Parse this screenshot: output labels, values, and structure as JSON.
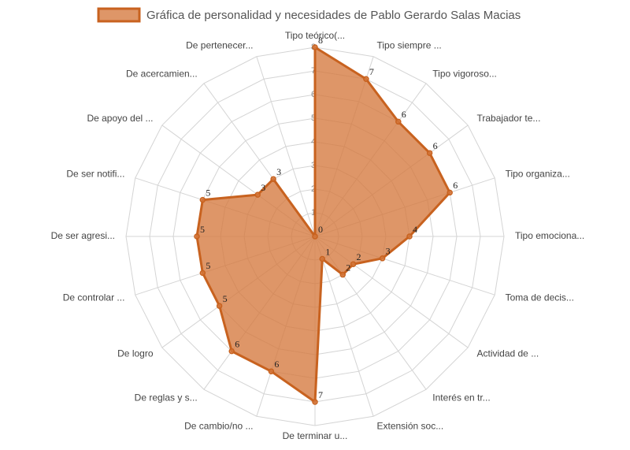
{
  "chart_data": {
    "type": "radar",
    "categories": [
      "Tipo teórico(...",
      "Tipo siempre ...",
      "Tipo vigoroso...",
      "Trabajador te...",
      "Tipo organiza...",
      "Tipo emociona...",
      "Toma de decis...",
      "Actividad de ...",
      "Interés en tr...",
      "Extensión soc...",
      "De terminar u...",
      "De cambio/no ...",
      "De reglas y s...",
      "De logro",
      "De controlar ...",
      "De ser agresi...",
      "De ser notifi...",
      "De apoyo del ...",
      "De acercamien...",
      "De pertenecer..."
    ],
    "series": [
      {
        "name": "Gráfica de personalidad y necesidades de Pablo Gerardo Salas Macias",
        "color": "#c8621f",
        "fill": "rgba(213,121,62,0.78)",
        "values": [
          8,
          7,
          6,
          6,
          6,
          4,
          3,
          2,
          2,
          1,
          7,
          6,
          6,
          5,
          5,
          5,
          5,
          3,
          3,
          0
        ]
      }
    ],
    "rlim": [
      0,
      8
    ],
    "rticks": [
      1,
      2,
      3,
      4,
      5,
      6,
      7,
      8
    ],
    "grid": true
  }
}
